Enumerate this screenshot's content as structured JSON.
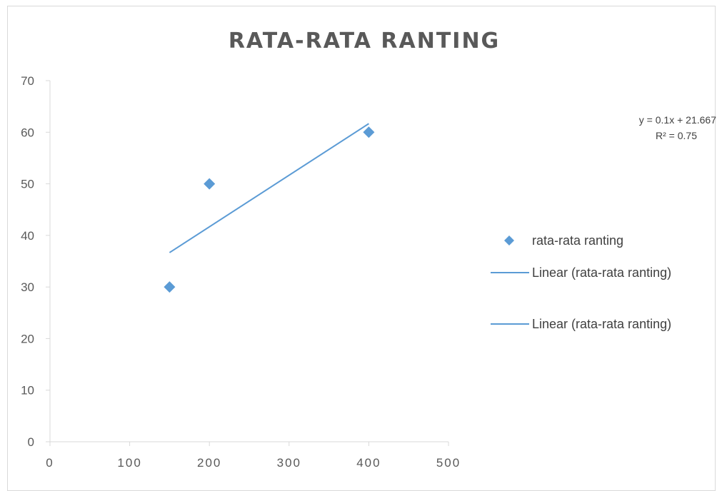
{
  "chart_data": {
    "type": "scatter",
    "title": "RATA-RATA RANTING",
    "xlabel": "",
    "ylabel": "",
    "xlim": [
      0,
      500
    ],
    "ylim": [
      0,
      70
    ],
    "x_ticks": [
      "0",
      "100",
      "200",
      "300",
      "400",
      "500"
    ],
    "y_ticks": [
      "0",
      "10",
      "20",
      "30",
      "40",
      "50",
      "60",
      "70"
    ],
    "series": [
      {
        "name": "rata-rata ranting",
        "points": [
          {
            "x": 150,
            "y": 30
          },
          {
            "x": 200,
            "y": 50
          },
          {
            "x": 400,
            "y": 60
          }
        ],
        "color": "#5b9bd5",
        "marker": "diamond"
      }
    ],
    "trendline": {
      "type": "linear",
      "slope": 0.1,
      "intercept": 21.667,
      "x_range": [
        150,
        400
      ],
      "color": "#5b9bd5",
      "equation": "y = 0.1x + 21.667",
      "r_squared": "R² = 0.75"
    },
    "legend": {
      "position": "right",
      "entries": [
        {
          "label": "rata-rata ranting",
          "symbol": "diamond"
        },
        {
          "label": "Linear (rata-rata ranting)",
          "symbol": "line"
        },
        {
          "label": "Linear (rata-rata ranting)",
          "symbol": "line"
        }
      ]
    },
    "grid": false
  }
}
